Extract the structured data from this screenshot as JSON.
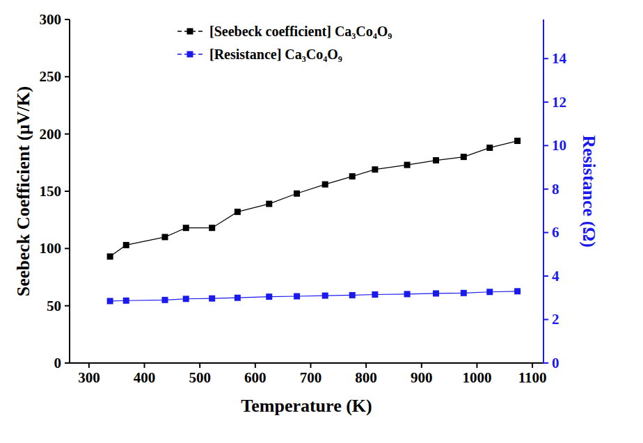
{
  "chart_data": {
    "type": "line",
    "x_label": "Temperature (K)",
    "y_label": "Seebeck Coefficient (µV/K)",
    "y2_label": "Resistance (Ω)",
    "x": [
      338,
      367,
      437,
      475,
      522,
      568,
      625,
      675,
      726,
      775,
      816,
      874,
      926,
      976,
      1023,
      1073
    ],
    "series": [
      {
        "name": "[Seebeck coefficient] Ca₃Co₄O₉",
        "color": "#000000",
        "marker": "square",
        "line_style": "solid",
        "values": [
          93,
          103,
          110,
          118,
          118,
          132,
          139,
          148,
          156,
          163,
          169,
          173,
          177,
          180,
          188,
          194
        ]
      },
      {
        "name": "[Resistance] Ca₃Co₄O₉",
        "color": "#1a1aee",
        "marker": "square",
        "line_style": "solid",
        "axis": "y2",
        "values": [
          2.85,
          2.87,
          2.9,
          2.95,
          2.97,
          3.0,
          3.05,
          3.07,
          3.1,
          3.12,
          3.15,
          3.17,
          3.2,
          3.22,
          3.27,
          3.3
        ]
      }
    ],
    "xlim": [
      265,
      1120
    ],
    "xticks": [
      300,
      400,
      500,
      600,
      700,
      800,
      900,
      1000,
      1100
    ],
    "ylim": [
      0,
      300
    ],
    "yticks": [
      0,
      50,
      100,
      150,
      200,
      250,
      300
    ],
    "y2lim": [
      0,
      15.8
    ],
    "y2ticks": [
      0,
      2,
      4,
      6,
      8,
      10,
      12,
      14
    ],
    "legend": "upper center",
    "grid": false
  }
}
